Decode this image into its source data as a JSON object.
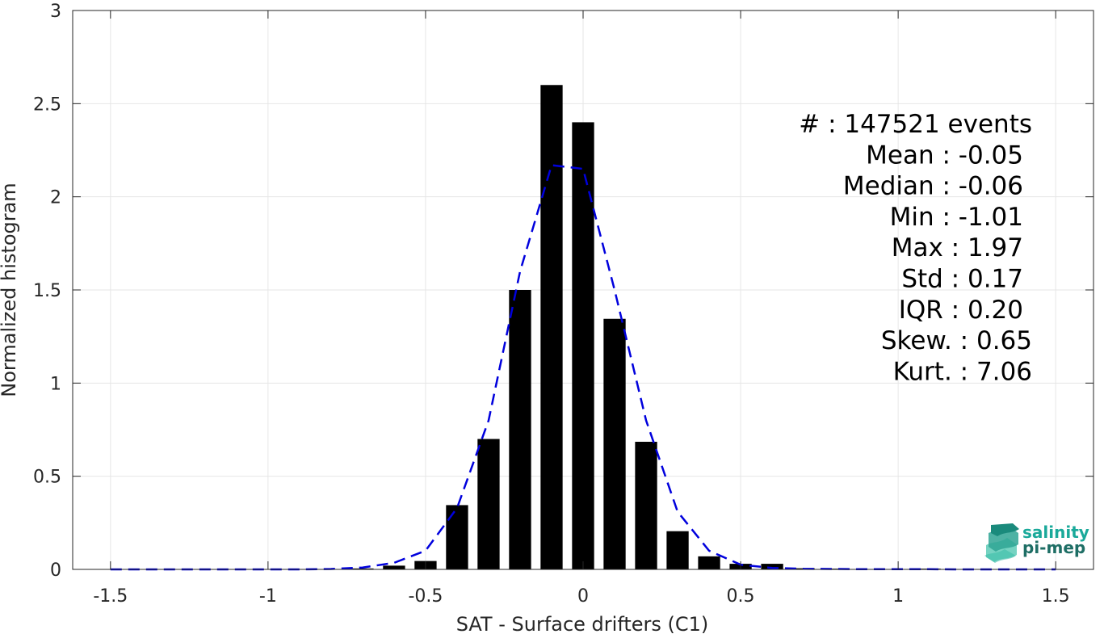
{
  "chart_data": {
    "type": "bar",
    "title": "",
    "xlabel": "SAT - Surface drifters (C1)",
    "ylabel": "Normalized histogram",
    "xlim": [
      -1.62,
      1.62
    ],
    "ylim": [
      0,
      3
    ],
    "grid": true,
    "xticks": [
      -1.5,
      -1,
      -0.5,
      0,
      0.5,
      1,
      1.5
    ],
    "xtick_labels": [
      "-1.5",
      "-1",
      "-0.5",
      "0",
      "0.5",
      "1",
      "1.5"
    ],
    "yticks": [
      0,
      0.5,
      1,
      1.5,
      2,
      2.5,
      3
    ],
    "ytick_labels": [
      "0",
      "0.5",
      "1",
      "1.5",
      "2",
      "2.5",
      "3"
    ],
    "bar_width": 0.07,
    "bars": {
      "x": [
        -1.5,
        -1.4,
        -1.3,
        -1.2,
        -1.1,
        -1.0,
        -0.9,
        -0.8,
        -0.7,
        -0.6,
        -0.5,
        -0.4,
        -0.3,
        -0.2,
        -0.1,
        0.0,
        0.1,
        0.2,
        0.3,
        0.4,
        0.5,
        0.6,
        0.7,
        0.8,
        0.9,
        1.0,
        1.1,
        1.2,
        1.3,
        1.4,
        1.5
      ],
      "values": [
        0,
        0,
        0,
        0,
        0,
        0,
        0,
        0,
        0.005,
        0.02,
        0.045,
        0.345,
        0.7,
        1.5,
        2.6,
        2.4,
        1.345,
        0.685,
        0.205,
        0.07,
        0.03,
        0.03,
        0.006,
        0.004,
        0.002,
        0.002,
        0.004,
        0.002,
        0.001,
        0.001,
        0
      ]
    },
    "fit_curve": {
      "style": "dashed",
      "color": "#0000dd",
      "x": [
        -1.5,
        -1.4,
        -1.3,
        -1.2,
        -1.1,
        -1.0,
        -0.9,
        -0.8,
        -0.7,
        -0.6,
        -0.5,
        -0.4,
        -0.3,
        -0.2,
        -0.1,
        0.0,
        0.1,
        0.2,
        0.3,
        0.4,
        0.5,
        0.6,
        0.7,
        0.8,
        0.9,
        1.0,
        1.1,
        1.2,
        1.3,
        1.4,
        1.5
      ],
      "y": [
        0,
        0,
        0,
        0,
        0,
        0,
        0,
        0.002,
        0.01,
        0.035,
        0.1,
        0.33,
        0.8,
        1.6,
        2.17,
        2.15,
        1.5,
        0.8,
        0.31,
        0.1,
        0.025,
        0.008,
        0.003,
        0.002,
        0.001,
        0.001,
        0.001,
        0,
        0,
        0,
        0
      ]
    },
    "stats": [
      {
        "label": "#  : 147521 events"
      },
      {
        "label": "Mean : -0.05"
      },
      {
        "label": "Median : -0.06"
      },
      {
        "label": "Min : -1.01"
      },
      {
        "label": "Max : 1.97"
      },
      {
        "label": "Std : 0.17"
      },
      {
        "label": "IQR : 0.20"
      },
      {
        "label": "Skew. : 0.65"
      },
      {
        "label": "Kurt. : 7.06"
      }
    ],
    "colors": {
      "bar": "#000000",
      "grid": "#e6e6e6",
      "axis": "#262626"
    }
  },
  "logo": {
    "line1": "salinity",
    "line2": "pi-mep",
    "color1": "#1aa99a",
    "color2": "#1e6e65"
  }
}
